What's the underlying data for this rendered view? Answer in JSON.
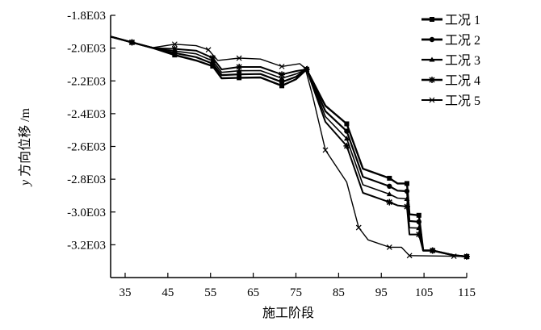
{
  "chart_data": {
    "type": "line",
    "title": "",
    "xlabel": "施工阶段",
    "ylabel_italic": "y",
    "ylabel": " 方向位移 /m",
    "xlim": [
      31.6,
      115
    ],
    "ylim": [
      -3400,
      -1800
    ],
    "xticks": [
      35,
      45,
      55,
      65,
      75,
      85,
      95,
      105,
      115
    ],
    "xtick_labels": [
      "35",
      "45",
      "55",
      "65",
      "75",
      "85",
      "95",
      "105",
      "115"
    ],
    "yticks": [
      -1800,
      -2000,
      -2200,
      -2400,
      -2600,
      -2800,
      -3000,
      -3200
    ],
    "ytick_labels": [
      "-1.8E03",
      "-2.0E03",
      "-2.2E03",
      "-2.4E03",
      "-2.6E03",
      "-2.8E03",
      "-3.0E03",
      "-3.2E03"
    ],
    "grid": false,
    "legend_position": "top-right",
    "series": [
      {
        "name": "工况 1",
        "marker": "square",
        "x": [
          31.6,
          36.6,
          41.6,
          46.6,
          51.6,
          55.5,
          57.6,
          61.7,
          66.7,
          71.7,
          75,
          77.5,
          81.9,
          86.9,
          90.7,
          96.9,
          98.8,
          101,
          101.6,
          103.8,
          104.8,
          107,
          112,
          115
        ],
        "y": [
          -1930,
          -1965,
          -2000,
          -2042,
          -2075,
          -2110,
          -2184,
          -2181,
          -2179,
          -2230,
          -2190,
          -2130,
          -2352,
          -2462,
          -2736,
          -2794,
          -2826,
          -2826,
          -3014,
          -3020,
          -3235,
          -3235,
          -3264,
          -3272
        ]
      },
      {
        "name": "工况 2",
        "marker": "circle",
        "x": [
          31.6,
          36.6,
          41.6,
          46.6,
          51.6,
          55.5,
          57.6,
          61.7,
          66.7,
          71.7,
          75,
          77.5,
          81.9,
          86.9,
          90.7,
          96.9,
          98.8,
          101,
          101.6,
          103.8,
          104.8,
          107,
          112,
          115
        ],
        "y": [
          -1930,
          -1965,
          -2000,
          -2030,
          -2055,
          -2095,
          -2165,
          -2160,
          -2158,
          -2207,
          -2175,
          -2130,
          -2385,
          -2507,
          -2785,
          -2843,
          -2870,
          -2873,
          -3055,
          -3060,
          -3235,
          -3235,
          -3264,
          -3272
        ]
      },
      {
        "name": "工况 3",
        "marker": "triangle",
        "x": [
          31.6,
          36.6,
          41.6,
          46.6,
          51.6,
          55.5,
          57.6,
          61.7,
          66.7,
          71.7,
          75,
          77.5,
          81.9,
          86.9,
          90.7,
          96.9,
          98.8,
          101,
          101.6,
          103.8,
          104.8,
          107,
          112,
          115
        ],
        "y": [
          -1930,
          -1965,
          -2000,
          -2018,
          -2035,
          -2078,
          -2148,
          -2138,
          -2137,
          -2184,
          -2158,
          -2130,
          -2418,
          -2552,
          -2834,
          -2891,
          -2915,
          -2920,
          -3096,
          -3098,
          -3235,
          -3235,
          -3264,
          -3272
        ]
      },
      {
        "name": "工况 4",
        "marker": "star",
        "x": [
          31.6,
          36.6,
          41.6,
          46.6,
          51.6,
          55.5,
          57.6,
          61.7,
          66.7,
          71.7,
          75,
          77.5,
          81.9,
          86.9,
          90.7,
          96.9,
          98.8,
          101,
          101.6,
          103.8,
          104.8,
          107,
          112,
          115
        ],
        "y": [
          -1930,
          -1965,
          -2000,
          -2005,
          -2015,
          -2060,
          -2130,
          -2115,
          -2115,
          -2161,
          -2140,
          -2130,
          -2450,
          -2597,
          -2883,
          -2940,
          -2960,
          -2967,
          -3137,
          -3137,
          -3235,
          -3235,
          -3264,
          -3272
        ]
      },
      {
        "name": "工况 5",
        "marker": "cross",
        "x": [
          31.6,
          36.6,
          41.6,
          46.6,
          51.6,
          54.5,
          56.7,
          61.7,
          66.7,
          71.7,
          75.9,
          77.2,
          79,
          81.9,
          86.9,
          89.7,
          91.9,
          96.9,
          99.7,
          101.6,
          107,
          112,
          115
        ],
        "y": [
          -1930,
          -1965,
          -1997,
          -1976,
          -1985,
          -2010,
          -2075,
          -2061,
          -2067,
          -2112,
          -2095,
          -2124,
          -2300,
          -2622,
          -2818,
          -3095,
          -3170,
          -3215,
          -3215,
          -3266,
          -3268,
          -3270,
          -3272
        ]
      }
    ]
  }
}
